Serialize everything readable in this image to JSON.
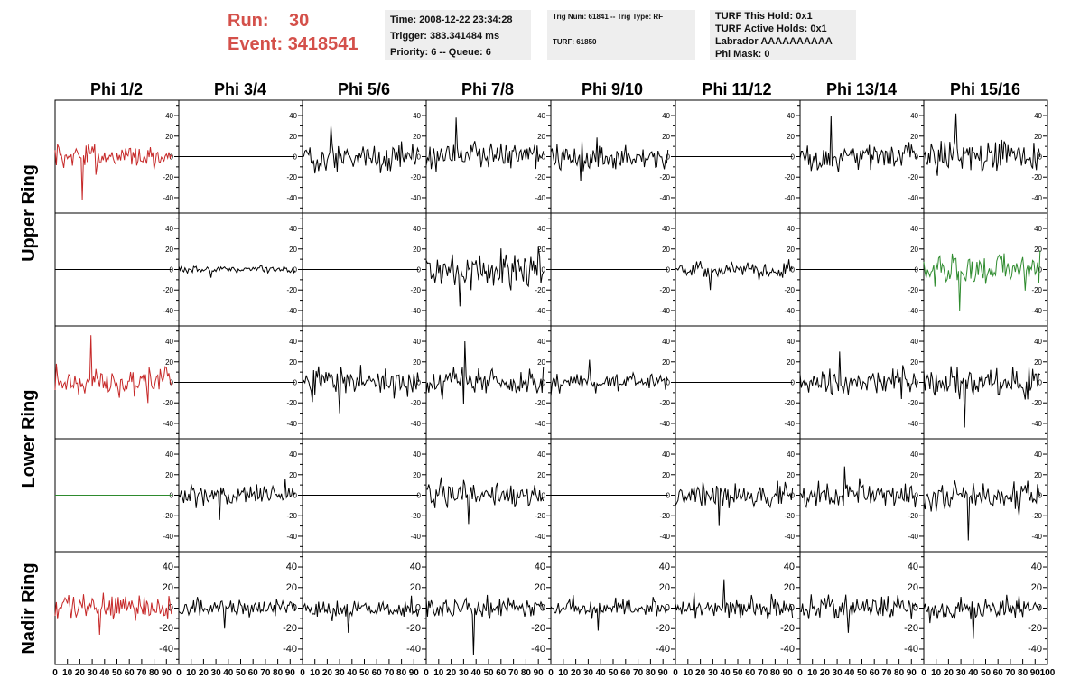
{
  "header": {
    "run_label": "Run:",
    "run_value": "30",
    "event_label": "Event:",
    "event_value": "3418541",
    "time_box": [
      "Time: 2008-12-22 23:34:28",
      "Trigger: 383.341484 ms",
      "Priority: 6 -- Queue: 6"
    ],
    "trig_box": [
      "Trig Num: 61841 -- Trig Type: RF",
      "TURF: 61850"
    ],
    "turf_box": [
      "TURF This Hold: 0x1",
      "TURF Active Holds: 0x1",
      "Labrador AAAAAAAAAA",
      "Phi Mask: 0"
    ]
  },
  "colors": {
    "header_red": "#d4504a",
    "trace_black": "#000000",
    "trace_red": "#c62828",
    "trace_green": "#2e8b2e",
    "box_gray": "#eeeeee"
  },
  "chart_data": {
    "type": "line",
    "columns": [
      "Phi 1/2",
      "Phi 3/4",
      "Phi 5/6",
      "Phi 7/8",
      "Phi 9/10",
      "Phi 11/12",
      "Phi 13/14",
      "Phi 15/16"
    ],
    "ring_labels": [
      "Upper Ring",
      "Lower Ring",
      "Nadir Ring"
    ],
    "xlim": [
      0,
      100
    ],
    "x_ticks": [
      0,
      10,
      20,
      30,
      40,
      50,
      60,
      70,
      80,
      90,
      100
    ],
    "x_tick_labels": [
      "0",
      "10",
      "20",
      "30",
      "40",
      "50",
      "60",
      "70",
      "80",
      "90",
      "100"
    ],
    "ylim": [
      -55,
      55
    ],
    "y_ticks": [
      -40,
      -20,
      0,
      20,
      40
    ],
    "y_tick_labels": [
      "-40",
      "-20",
      "0",
      "20",
      "40"
    ],
    "grid": false,
    "trace_length": 95,
    "rows": [
      [
        {
          "color": "red",
          "amp": 14,
          "peak": 42
        },
        {
          "color": "black",
          "amp": 0,
          "peak": 0
        },
        {
          "color": "black",
          "amp": 14,
          "peak": 30
        },
        {
          "color": "black",
          "amp": 12,
          "peak": 38
        },
        {
          "color": "black",
          "amp": 12,
          "peak": 24
        },
        {
          "color": "black",
          "amp": 0,
          "peak": 0
        },
        {
          "color": "black",
          "amp": 14,
          "peak": 40
        },
        {
          "color": "black",
          "amp": 16,
          "peak": 42
        }
      ],
      [
        {
          "color": "black",
          "amp": 0,
          "peak": 0
        },
        {
          "color": "black",
          "amp": 3,
          "peak": 8
        },
        {
          "color": "black",
          "amp": 0,
          "peak": 0
        },
        {
          "color": "black",
          "amp": 16,
          "peak": 36
        },
        {
          "color": "black",
          "amp": 0,
          "peak": 0
        },
        {
          "color": "black",
          "amp": 8,
          "peak": 20
        },
        {
          "color": "black",
          "amp": 0,
          "peak": 0
        },
        {
          "color": "green",
          "amp": 16,
          "peak": 40
        }
      ],
      [
        {
          "color": "red",
          "amp": 14,
          "peak": 46
        },
        {
          "color": "black",
          "amp": 0,
          "peak": 0
        },
        {
          "color": "black",
          "amp": 13,
          "peak": 30
        },
        {
          "color": "black",
          "amp": 14,
          "peak": 40
        },
        {
          "color": "black",
          "amp": 9,
          "peak": 22
        },
        {
          "color": "black",
          "amp": 0,
          "peak": 0
        },
        {
          "color": "black",
          "amp": 12,
          "peak": 30
        },
        {
          "color": "black",
          "amp": 14,
          "peak": 44
        }
      ],
      [
        {
          "color": "green",
          "amp": 0,
          "peak": 0
        },
        {
          "color": "black",
          "amp": 10,
          "peak": 24
        },
        {
          "color": "black",
          "amp": 0,
          "peak": 0
        },
        {
          "color": "black",
          "amp": 12,
          "peak": 28
        },
        {
          "color": "black",
          "amp": 0,
          "peak": 0
        },
        {
          "color": "black",
          "amp": 11,
          "peak": 30
        },
        {
          "color": "black",
          "amp": 12,
          "peak": 28
        },
        {
          "color": "black",
          "amp": 14,
          "peak": 44
        }
      ],
      [
        {
          "color": "red",
          "amp": 12,
          "peak": 26
        },
        {
          "color": "black",
          "amp": 8,
          "peak": 20
        },
        {
          "color": "black",
          "amp": 9,
          "peak": 24
        },
        {
          "color": "black",
          "amp": 10,
          "peak": 46
        },
        {
          "color": "black",
          "amp": 9,
          "peak": 22
        },
        {
          "color": "black",
          "amp": 11,
          "peak": 28
        },
        {
          "color": "black",
          "amp": 10,
          "peak": 24
        },
        {
          "color": "black",
          "amp": 10,
          "peak": 30
        }
      ]
    ]
  }
}
